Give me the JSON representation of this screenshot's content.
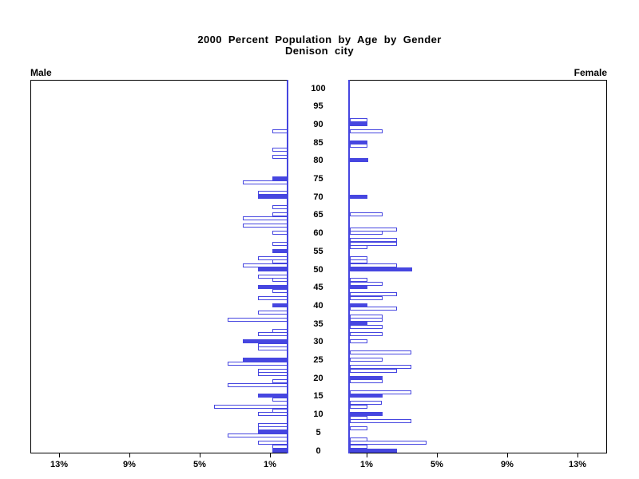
{
  "title": {
    "line1": "2000 Percent Population by Age by Gender",
    "line2": "Denison city"
  },
  "colors": {
    "bar_blue": "#4646e0",
    "axis_black": "#000000",
    "hollow_fill": "#ffffff"
  },
  "chart_data": {
    "type": "bar",
    "variant": "population-pyramid",
    "title": "2000 Percent Population by Age by Gender",
    "subtitle": "Denison city",
    "left_label": "Male",
    "right_label": "Female",
    "x_axis": {
      "tick_values": [
        1,
        5,
        9,
        13
      ],
      "tick_suffix": "%",
      "max_percent": 14.7
    },
    "age_axis": {
      "min": 0,
      "max": 100,
      "tick_interval": 5
    },
    "legend": "solid = filled blue bar, outline = white bar with blue border",
    "male": [
      {
        "age": 88,
        "pct": 0.85,
        "fill": "outline"
      },
      {
        "age": 83,
        "pct": 0.85,
        "fill": "outline"
      },
      {
        "age": 81,
        "pct": 0.85,
        "fill": "outline"
      },
      {
        "age": 75,
        "pct": 0.85,
        "fill": "solid"
      },
      {
        "age": 74,
        "pct": 2.55,
        "fill": "outline"
      },
      {
        "age": 71,
        "pct": 1.7,
        "fill": "outline"
      },
      {
        "age": 70,
        "pct": 1.7,
        "fill": "solid"
      },
      {
        "age": 67,
        "pct": 0.85,
        "fill": "outline"
      },
      {
        "age": 65,
        "pct": 0.85,
        "fill": "outline"
      },
      {
        "age": 64,
        "pct": 2.55,
        "fill": "outline"
      },
      {
        "age": 62,
        "pct": 2.55,
        "fill": "outline"
      },
      {
        "age": 60,
        "pct": 0.85,
        "fill": "outline"
      },
      {
        "age": 57,
        "pct": 0.85,
        "fill": "outline"
      },
      {
        "age": 55,
        "pct": 0.85,
        "fill": "solid"
      },
      {
        "age": 53,
        "pct": 1.7,
        "fill": "outline"
      },
      {
        "age": 52,
        "pct": 0.85,
        "fill": "outline"
      },
      {
        "age": 51,
        "pct": 2.55,
        "fill": "outline"
      },
      {
        "age": 50,
        "pct": 1.7,
        "fill": "solid"
      },
      {
        "age": 48,
        "pct": 1.7,
        "fill": "outline"
      },
      {
        "age": 47,
        "pct": 0.85,
        "fill": "outline"
      },
      {
        "age": 45,
        "pct": 1.7,
        "fill": "solid"
      },
      {
        "age": 44,
        "pct": 0.85,
        "fill": "outline"
      },
      {
        "age": 42,
        "pct": 1.7,
        "fill": "outline"
      },
      {
        "age": 40,
        "pct": 0.85,
        "fill": "solid"
      },
      {
        "age": 38,
        "pct": 1.7,
        "fill": "outline"
      },
      {
        "age": 36,
        "pct": 3.4,
        "fill": "outline"
      },
      {
        "age": 33,
        "pct": 0.85,
        "fill": "outline"
      },
      {
        "age": 32,
        "pct": 1.7,
        "fill": "outline"
      },
      {
        "age": 30,
        "pct": 2.55,
        "fill": "solid"
      },
      {
        "age": 29,
        "pct": 1.7,
        "fill": "outline"
      },
      {
        "age": 28,
        "pct": 1.7,
        "fill": "outline"
      },
      {
        "age": 25,
        "pct": 2.55,
        "fill": "solid"
      },
      {
        "age": 24,
        "pct": 3.4,
        "fill": "outline"
      },
      {
        "age": 22,
        "pct": 1.7,
        "fill": "outline"
      },
      {
        "age": 21,
        "pct": 1.7,
        "fill": "outline"
      },
      {
        "age": 19,
        "pct": 0.85,
        "fill": "outline"
      },
      {
        "age": 18,
        "pct": 3.4,
        "fill": "outline"
      },
      {
        "age": 15,
        "pct": 1.7,
        "fill": "solid"
      },
      {
        "age": 14,
        "pct": 0.85,
        "fill": "outline"
      },
      {
        "age": 12,
        "pct": 4.2,
        "fill": "outline"
      },
      {
        "age": 11,
        "pct": 0.85,
        "fill": "outline"
      },
      {
        "age": 10,
        "pct": 1.7,
        "fill": "outline"
      },
      {
        "age": 7,
        "pct": 1.7,
        "fill": "outline"
      },
      {
        "age": 6,
        "pct": 1.7,
        "fill": "outline"
      },
      {
        "age": 5,
        "pct": 1.7,
        "fill": "solid"
      },
      {
        "age": 4,
        "pct": 3.4,
        "fill": "outline"
      },
      {
        "age": 2,
        "pct": 1.7,
        "fill": "outline"
      },
      {
        "age": 1,
        "pct": 0.85,
        "fill": "outline"
      },
      {
        "age": 0,
        "pct": 0.85,
        "fill": "solid"
      }
    ],
    "female": [
      {
        "age": 91,
        "pct": 1.0,
        "fill": "outline"
      },
      {
        "age": 90,
        "pct": 1.0,
        "fill": "solid"
      },
      {
        "age": 88,
        "pct": 1.85,
        "fill": "outline"
      },
      {
        "age": 85,
        "pct": 1.0,
        "fill": "solid"
      },
      {
        "age": 84,
        "pct": 1.0,
        "fill": "outline"
      },
      {
        "age": 80,
        "pct": 1.05,
        "fill": "solid"
      },
      {
        "age": 70,
        "pct": 1.0,
        "fill": "solid"
      },
      {
        "age": 65,
        "pct": 1.85,
        "fill": "outline"
      },
      {
        "age": 61,
        "pct": 2.7,
        "fill": "outline"
      },
      {
        "age": 60,
        "pct": 1.85,
        "fill": "outline"
      },
      {
        "age": 58,
        "pct": 2.7,
        "fill": "outline"
      },
      {
        "age": 57,
        "pct": 2.7,
        "fill": "outline"
      },
      {
        "age": 56,
        "pct": 1.0,
        "fill": "outline"
      },
      {
        "age": 53,
        "pct": 1.0,
        "fill": "outline"
      },
      {
        "age": 52,
        "pct": 1.0,
        "fill": "outline"
      },
      {
        "age": 51,
        "pct": 2.7,
        "fill": "outline"
      },
      {
        "age": 50,
        "pct": 3.55,
        "fill": "solid"
      },
      {
        "age": 47,
        "pct": 1.0,
        "fill": "outline"
      },
      {
        "age": 46,
        "pct": 1.85,
        "fill": "outline"
      },
      {
        "age": 45,
        "pct": 1.0,
        "fill": "solid"
      },
      {
        "age": 43,
        "pct": 2.7,
        "fill": "outline"
      },
      {
        "age": 42,
        "pct": 1.85,
        "fill": "outline"
      },
      {
        "age": 40,
        "pct": 1.0,
        "fill": "solid"
      },
      {
        "age": 39,
        "pct": 2.7,
        "fill": "outline"
      },
      {
        "age": 37,
        "pct": 1.85,
        "fill": "outline"
      },
      {
        "age": 36,
        "pct": 1.85,
        "fill": "outline"
      },
      {
        "age": 35,
        "pct": 1.0,
        "fill": "solid"
      },
      {
        "age": 34,
        "pct": 1.85,
        "fill": "outline"
      },
      {
        "age": 32,
        "pct": 1.85,
        "fill": "outline"
      },
      {
        "age": 30,
        "pct": 1.0,
        "fill": "outline"
      },
      {
        "age": 27,
        "pct": 3.5,
        "fill": "outline"
      },
      {
        "age": 25,
        "pct": 1.85,
        "fill": "outline"
      },
      {
        "age": 23,
        "pct": 3.5,
        "fill": "outline"
      },
      {
        "age": 22,
        "pct": 2.7,
        "fill": "outline"
      },
      {
        "age": 20,
        "pct": 1.85,
        "fill": "solid"
      },
      {
        "age": 19,
        "pct": 1.85,
        "fill": "outline"
      },
      {
        "age": 16,
        "pct": 3.5,
        "fill": "outline"
      },
      {
        "age": 15,
        "pct": 1.85,
        "fill": "solid"
      },
      {
        "age": 13,
        "pct": 1.8,
        "fill": "outline"
      },
      {
        "age": 12,
        "pct": 1.0,
        "fill": "outline"
      },
      {
        "age": 10,
        "pct": 1.85,
        "fill": "solid"
      },
      {
        "age": 9,
        "pct": 1.0,
        "fill": "outline"
      },
      {
        "age": 8,
        "pct": 3.5,
        "fill": "outline"
      },
      {
        "age": 6,
        "pct": 1.0,
        "fill": "outline"
      },
      {
        "age": 3,
        "pct": 1.0,
        "fill": "outline"
      },
      {
        "age": 2,
        "pct": 4.35,
        "fill": "outline"
      },
      {
        "age": 1,
        "pct": 1.0,
        "fill": "outline"
      },
      {
        "age": 0,
        "pct": 2.7,
        "fill": "solid"
      }
    ]
  }
}
